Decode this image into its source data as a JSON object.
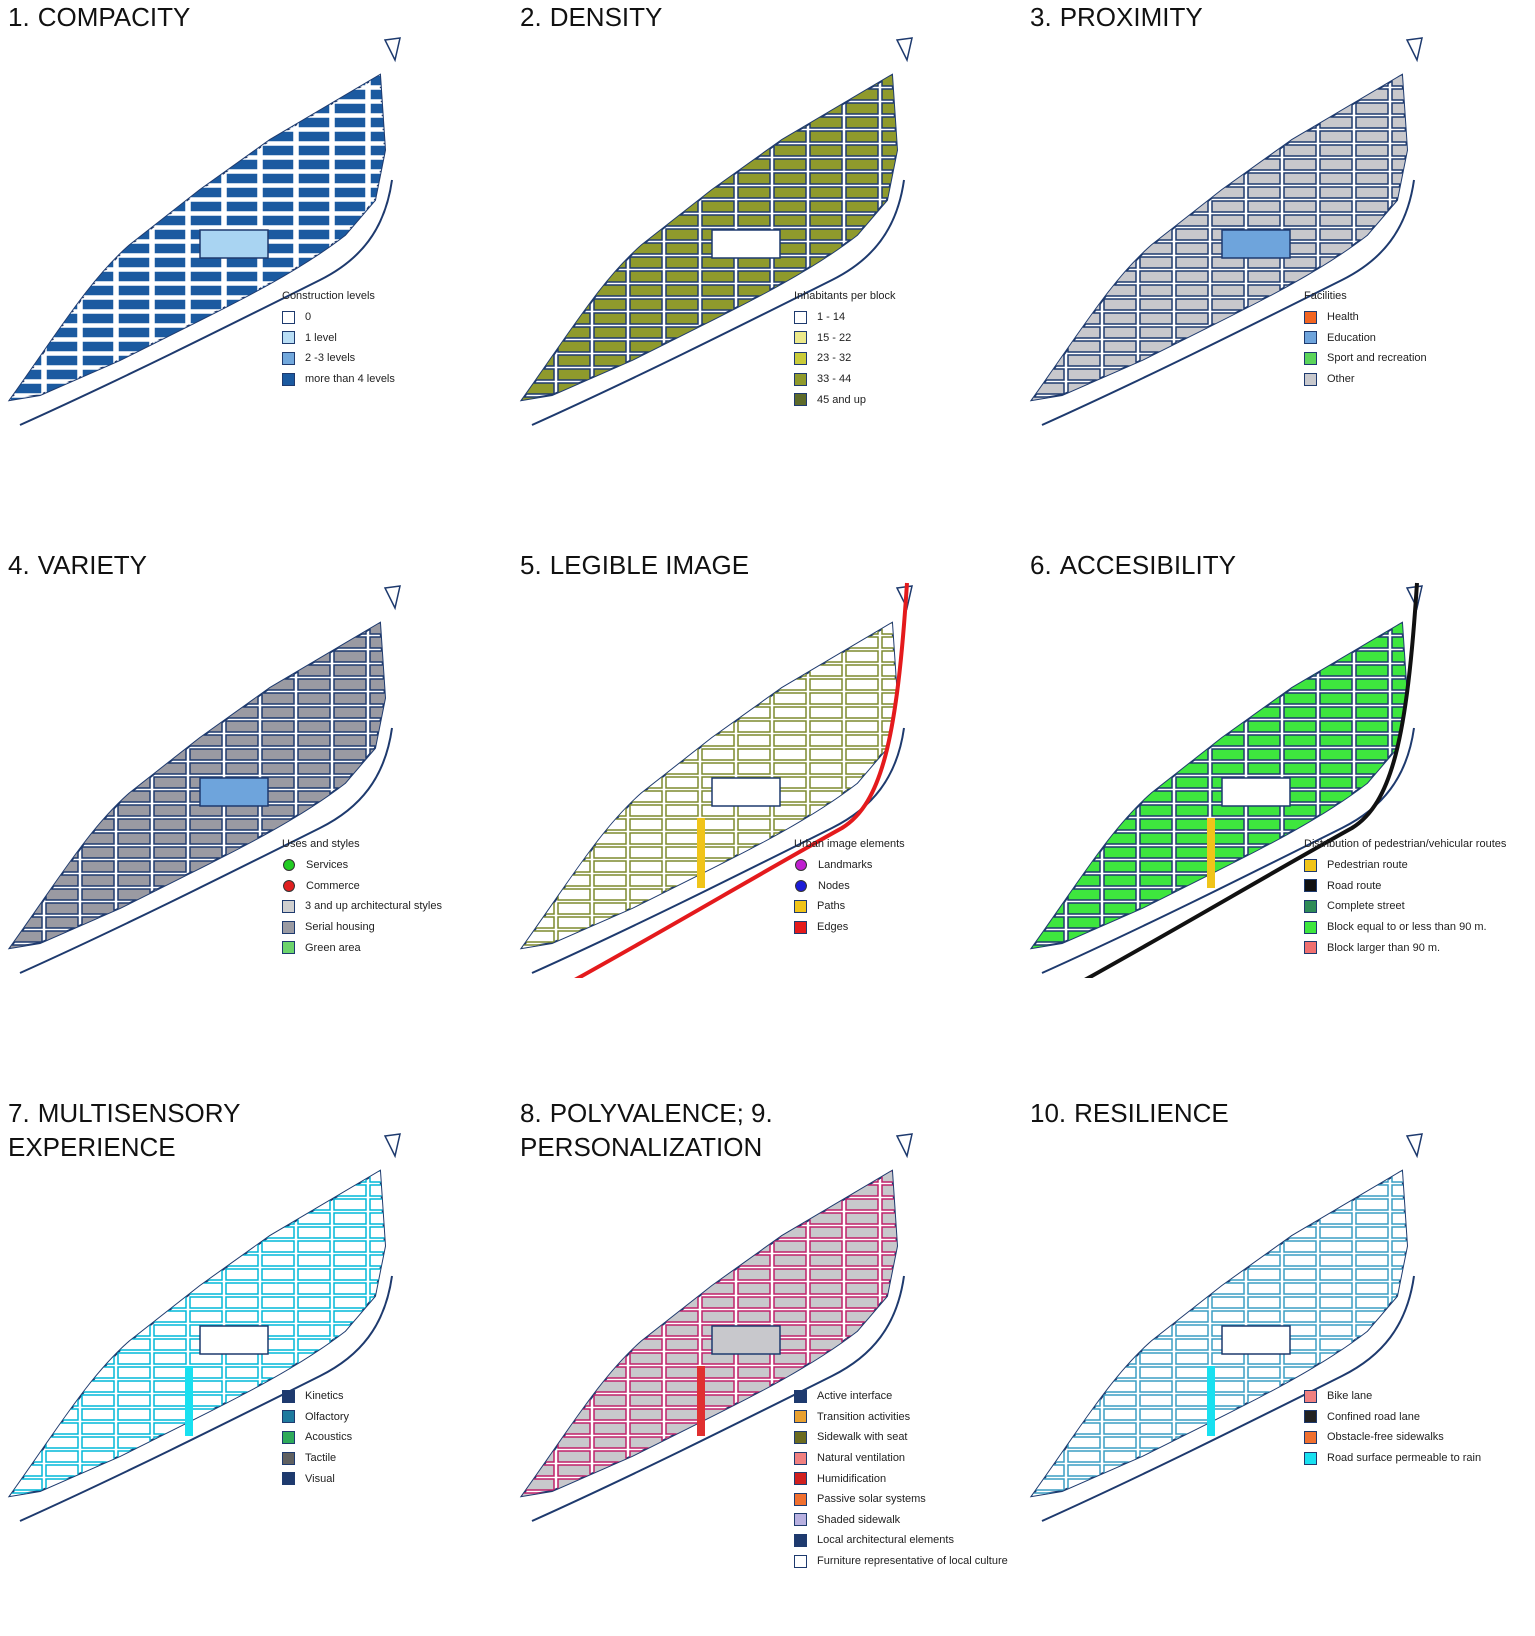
{
  "panels": [
    {
      "number": "1.",
      "title": "COMPACITY",
      "legend_title": "Construction levels",
      "map_style": {
        "fill": "#1b5aa0",
        "stroke": "#ffffff",
        "center_fill": "#a9d4f2",
        "edge_color": "",
        "path_color": ""
      },
      "legend": [
        {
          "label": "0",
          "color": "#ffffff"
        },
        {
          "label": "1 level",
          "color": "#b9def5"
        },
        {
          "label": "2 -3 levels",
          "color": "#72a8dc"
        },
        {
          "label": "more than 4 levels",
          "color": "#1b5aa0"
        }
      ]
    },
    {
      "number": "2.",
      "title": "DENSITY",
      "legend_title": "Inhabitants per block",
      "map_style": {
        "fill": "#8f9a2c",
        "stroke": "#1e3a6e",
        "center_fill": "#ffffff",
        "edge_color": "",
        "path_color": ""
      },
      "legend": [
        {
          "label": "1 - 14",
          "color": "#ffffff"
        },
        {
          "label": "15 - 22",
          "color": "#ece98a"
        },
        {
          "label": "23 - 32",
          "color": "#c9cb3a"
        },
        {
          "label": "33 - 44",
          "color": "#8f9a2c"
        },
        {
          "label": "45 and up",
          "color": "#5d6a2a"
        }
      ]
    },
    {
      "number": "3.",
      "title": "PROXIMITY",
      "legend_title": "Facilities",
      "map_style": {
        "fill": "#c8c8cc",
        "stroke": "#1e3a6e",
        "center_fill": "#6ea4dc",
        "edge_color": "",
        "path_color": ""
      },
      "legend": [
        {
          "label": "Health",
          "color": "#f26522"
        },
        {
          "label": "Education",
          "color": "#6ea4dc"
        },
        {
          "label": "Sport and recreation",
          "color": "#5bd45b"
        },
        {
          "label": "Other",
          "color": "#c8c8cc"
        }
      ]
    },
    {
      "number": "4.",
      "title": "VARIETY",
      "legend_title": "Uses and styles",
      "map_style": {
        "fill": "#9a9aa2",
        "stroke": "#1e3a6e",
        "center_fill": "#6ea4dc",
        "edge_color": "",
        "path_color": ""
      },
      "legend": [
        {
          "label": "Services",
          "color": "#22cc22",
          "shape": "dot"
        },
        {
          "label": "Commerce",
          "color": "#e02020",
          "shape": "dot"
        },
        {
          "label": "3 and up architectural styles",
          "color": "#cfcfcf"
        },
        {
          "label": "Serial housing",
          "color": "#9a9aa2"
        },
        {
          "label": "Green area",
          "color": "#6cd46c"
        }
      ]
    },
    {
      "number": "5.",
      "title": "LEGIBLE IMAGE",
      "legend_title": "Urban image elements",
      "map_style": {
        "fill": "#ffffff",
        "stroke": "#7d8a2e",
        "center_fill": "#ffffff",
        "edge_color": "#e41a1c",
        "path_color": "#f0c419"
      },
      "legend": [
        {
          "label": "Landmarks",
          "color": "#c020d0",
          "shape": "dot"
        },
        {
          "label": "Nodes",
          "color": "#1c1cd6",
          "shape": "dot"
        },
        {
          "label": "Paths",
          "color": "#f0c419"
        },
        {
          "label": "Edges",
          "color": "#e41a1c"
        }
      ]
    },
    {
      "number": "6.",
      "title": "ACCESIBILITY",
      "legend_title": "Distribution of pedestrian/vehicular routes",
      "map_style": {
        "fill": "#3ee63e",
        "stroke": "#1e3a6e",
        "center_fill": "#ffffff",
        "edge_color": "#111111",
        "path_color": "#f0c419"
      },
      "legend": [
        {
          "label": "Pedestrian route",
          "color": "#f0c419"
        },
        {
          "label": "Road route",
          "color": "#111111"
        },
        {
          "label": "Complete street",
          "color": "#2e8b57"
        },
        {
          "label": "Block equal to or less than 90 m.",
          "color": "#3ee63e"
        },
        {
          "label": "Block larger than 90 m.",
          "color": "#f07070"
        }
      ]
    },
    {
      "number": "7.",
      "title": "MULTISENSORY\nEXPERIENCE",
      "legend_title": "",
      "map_style": {
        "fill": "#ffffff",
        "stroke": "#00b8d8",
        "center_fill": "#ffffff",
        "edge_color": "",
        "path_color": "#18e0f0"
      },
      "legend": [
        {
          "label": "Kinetics",
          "color": "#1e3a6e"
        },
        {
          "label": "Olfactory",
          "color": "#1e7a9e"
        },
        {
          "label": "Acoustics",
          "color": "#2eaa5a"
        },
        {
          "label": "Tactile",
          "color": "#606060"
        },
        {
          "label": "Visual",
          "color": "#1e3a6e"
        }
      ]
    },
    {
      "number": "8.",
      "title": "POLYVALENCE; 9.\nPERSONALIZATION",
      "legend_title": "",
      "map_style": {
        "fill": "#c8c8cc",
        "stroke": "#c0206a",
        "center_fill": "#c8c8cc",
        "edge_color": "",
        "path_color": "#e03030"
      },
      "legend": [
        {
          "label": "Active interface",
          "color": "#1e3a6e"
        },
        {
          "label": "Transition activities",
          "color": "#e8a030"
        },
        {
          "label": "Sidewalk with seat",
          "color": "#6b6b20"
        },
        {
          "label": "Natural ventilation",
          "color": "#f08080"
        },
        {
          "label": "Humidification",
          "color": "#d02020"
        },
        {
          "label": "Passive solar systems",
          "color": "#f07030"
        },
        {
          "label": "Shaded sidewalk",
          "color": "#b8b0e0"
        },
        {
          "label": "Local architectural elements",
          "color": "#1e3a6e"
        },
        {
          "label": "Furniture representative of local culture",
          "color": "#ffffff"
        }
      ]
    },
    {
      "number": "10.",
      "title": "RESILIENCE",
      "legend_title": "",
      "map_style": {
        "fill": "#ffffff",
        "stroke": "#3a9ec4",
        "center_fill": "#ffffff",
        "edge_color": "",
        "path_color": "#18e0f0"
      },
      "legend": [
        {
          "label": "Bike lane",
          "color": "#f08080"
        },
        {
          "label": "Confined road lane",
          "color": "#222222"
        },
        {
          "label": "Obstacle-free sidewalks",
          "color": "#f07030"
        },
        {
          "label": "Road surface permeable to rain",
          "color": "#18e0f0"
        }
      ]
    }
  ]
}
